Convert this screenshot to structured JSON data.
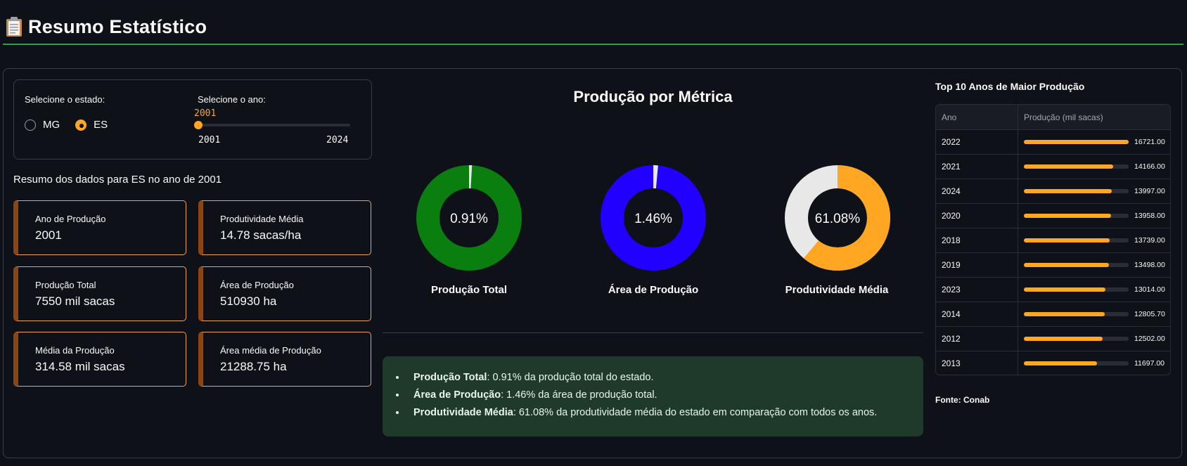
{
  "header": {
    "title": "Resumo Estatístico",
    "icon": "clipboard-icon",
    "accent": "#2e9e4a"
  },
  "controls": {
    "state_label": "Selecione o estado:",
    "states": [
      {
        "label": "MG",
        "selected": false
      },
      {
        "label": "ES",
        "selected": true
      }
    ],
    "year_label": "Selecione o ano:",
    "year_value": "2001",
    "year_min": "2001",
    "year_max": "2024",
    "slider_fraction": 0
  },
  "summary_heading": "Resumo dos dados para ES no ano de 2001",
  "cards": [
    {
      "title": "Ano de Produção",
      "value": "2001"
    },
    {
      "title": "Produtividade Média",
      "value": "14.78 sacas/ha"
    },
    {
      "title": "Produção Total",
      "value": "7550 mil sacas"
    },
    {
      "title": "Área de Produção",
      "value": "510930 ha"
    },
    {
      "title": "Média da Produção",
      "value": "314.58 mil sacas"
    },
    {
      "title": "Área média de Produção",
      "value": "21288.75 ha"
    }
  ],
  "chart_data": {
    "type": "pie",
    "title": "Produção por Métrica",
    "donuts": [
      {
        "label": "Produção Total",
        "percent": 0.91,
        "text": "0.91%",
        "color": "#0a7e0f"
      },
      {
        "label": "Área de Produção",
        "percent": 1.46,
        "text": "1.46%",
        "color": "#2200ff"
      },
      {
        "label": "Produtividade Média",
        "percent": 61.08,
        "text": "61.08%",
        "color": "#ffa723"
      }
    ],
    "remainder_color": "#e8e8e8"
  },
  "summary_box": {
    "bg": "#1f3a2a",
    "items": [
      {
        "bold": "Produção Total",
        "text": ": 0.91% da produção total do estado."
      },
      {
        "bold": "Área de Produção",
        "text": ": 1.46% da área de produção total."
      },
      {
        "bold": "Produtividade Média",
        "text": ": 61.08% da produtividade média do estado em comparação com todos os anos."
      }
    ]
  },
  "top10": {
    "title": "Top 10 Anos de Maior Produção",
    "col_year": "Ano",
    "col_prod": "Produção (mil sacas)",
    "max": 16721.0,
    "rows": [
      {
        "year": "2022",
        "value": 16721.0,
        "text": "16721.00"
      },
      {
        "year": "2021",
        "value": 14166.0,
        "text": "14166.00"
      },
      {
        "year": "2024",
        "value": 13997.0,
        "text": "13997.00"
      },
      {
        "year": "2020",
        "value": 13958.0,
        "text": "13958.00"
      },
      {
        "year": "2018",
        "value": 13739.0,
        "text": "13739.00"
      },
      {
        "year": "2019",
        "value": 13498.0,
        "text": "13498.00"
      },
      {
        "year": "2023",
        "value": 13014.0,
        "text": "13014.00"
      },
      {
        "year": "2014",
        "value": 12805.7,
        "text": "12805.70"
      },
      {
        "year": "2012",
        "value": 12502.0,
        "text": "12502.00"
      },
      {
        "year": "2013",
        "value": 11697.0,
        "text": "11697.00"
      }
    ],
    "source": "Fonte: Conab"
  }
}
